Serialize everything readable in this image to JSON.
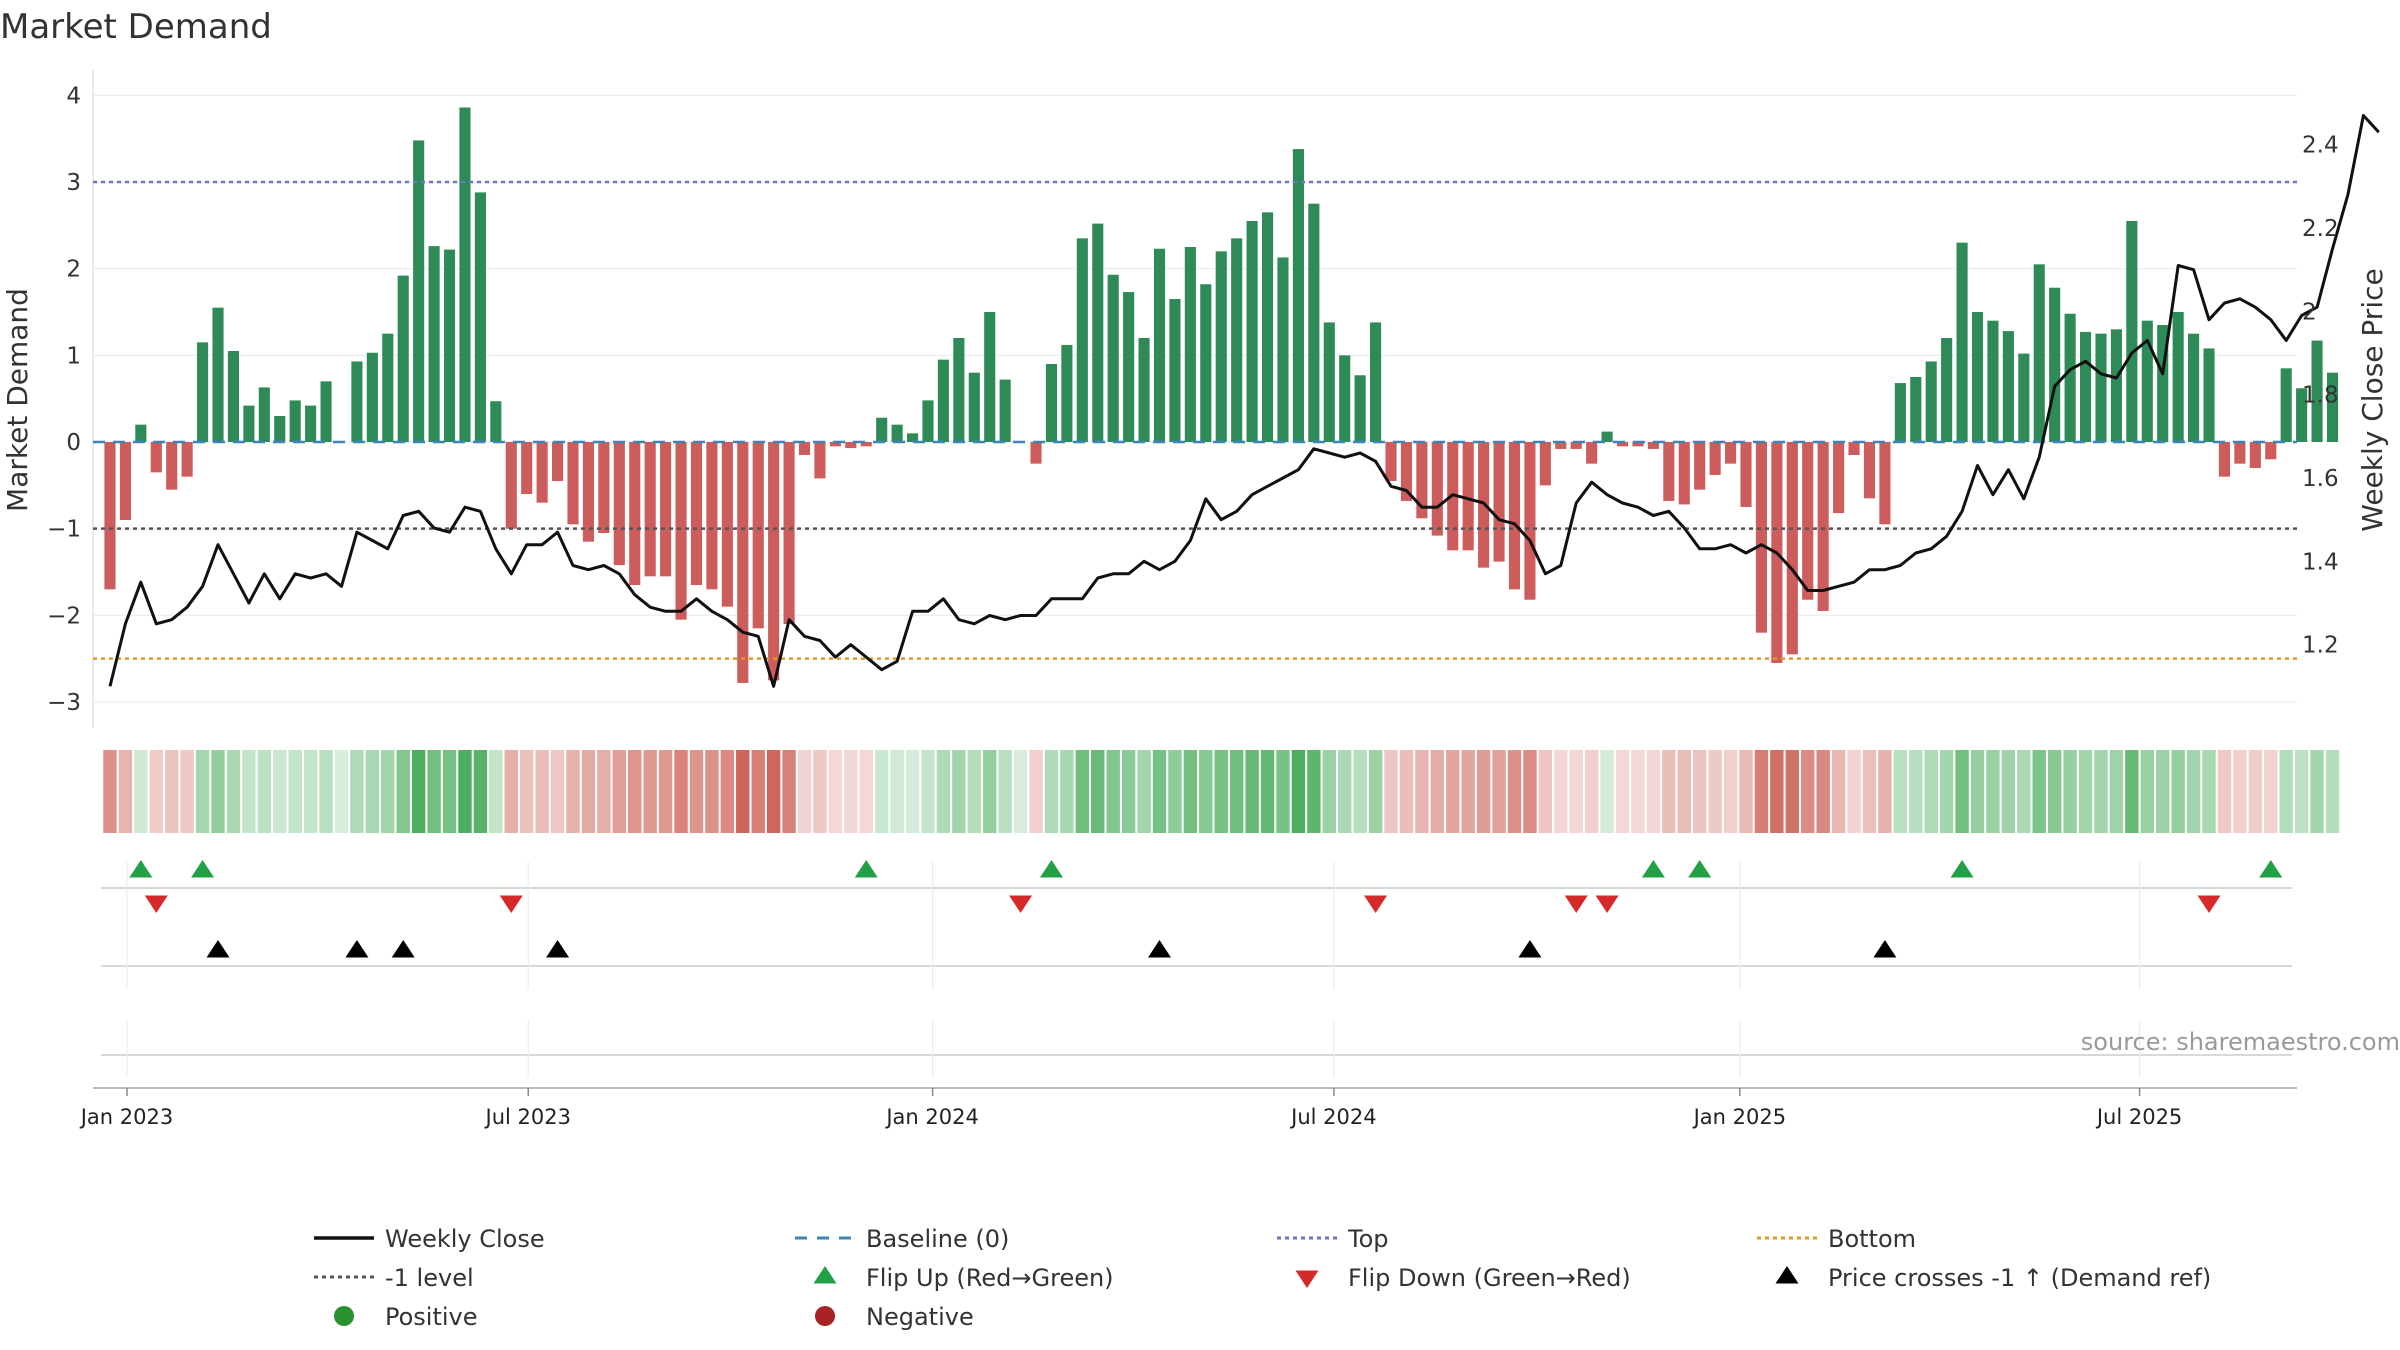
{
  "chart_data": {
    "type": "bar",
    "title": "Market Demand",
    "ylabel_left": "Market Demand",
    "ylabel_right": "Weekly Close Price",
    "source": "source: sharemaestro.com",
    "ylim_left": [
      -3.3,
      4.2
    ],
    "yticks_left": [
      {
        "value": 4,
        "label": "4"
      },
      {
        "value": 3,
        "label": "3"
      },
      {
        "value": 2,
        "label": "2"
      },
      {
        "value": 1,
        "label": "1"
      },
      {
        "value": 0,
        "label": "0"
      },
      {
        "value": -1,
        "label": "−1"
      },
      {
        "value": -2,
        "label": "−2"
      },
      {
        "value": -3,
        "label": "−3"
      }
    ],
    "ylim_right": [
      1.0,
      2.56
    ],
    "yticks_right": [
      {
        "value": 2.4,
        "label": "2.4"
      },
      {
        "value": 2.2,
        "label": "2.2"
      },
      {
        "value": 2.0,
        "label": "2"
      },
      {
        "value": 1.8,
        "label": "1.8"
      },
      {
        "value": 1.6,
        "label": "1.6"
      },
      {
        "value": 1.4,
        "label": "1.4"
      },
      {
        "value": 1.2,
        "label": "1.2"
      }
    ],
    "x_start_index": -1.1,
    "x_end_index": 141.7,
    "x_tick_labels": [
      {
        "week_index": 1.1,
        "label": "Jan 2023"
      },
      {
        "week_index": 27.1,
        "label": "Jul 2023"
      },
      {
        "week_index": 53.3,
        "label": "Jan 2024"
      },
      {
        "week_index": 79.3,
        "label": "Jul 2024"
      },
      {
        "week_index": 105.6,
        "label": "Jan 2025"
      },
      {
        "week_index": 131.5,
        "label": "Jul 2025"
      }
    ],
    "reference_lines": {
      "top": 3.0,
      "minus_one": -1.0,
      "bottom": -2.5,
      "baseline": 0
    },
    "demand": [
      -1.7,
      -0.9,
      0.2,
      -0.35,
      -0.55,
      -0.4,
      1.15,
      1.55,
      1.05,
      0.42,
      0.63,
      0.3,
      0.48,
      0.42,
      0.7,
      0,
      0.93,
      1.03,
      1.25,
      1.92,
      3.48,
      2.26,
      2.22,
      3.86,
      2.88,
      0.47,
      -1.0,
      -0.6,
      -0.7,
      -0.45,
      -0.95,
      -1.15,
      -1.05,
      -1.42,
      -1.65,
      -1.55,
      -1.55,
      -2.05,
      -1.65,
      -1.7,
      -1.9,
      -2.78,
      -2.15,
      -2.75,
      -2.1,
      -0.15,
      -0.42,
      -0.05,
      -0.07,
      -0.05,
      0.28,
      0.2,
      0.1,
      0.48,
      0.95,
      1.2,
      0.8,
      1.5,
      0.72,
      0,
      -0.25,
      0.9,
      1.12,
      2.35,
      2.52,
      1.93,
      1.73,
      1.2,
      2.23,
      1.65,
      2.25,
      1.82,
      2.2,
      2.35,
      2.55,
      2.65,
      2.13,
      3.38,
      2.75,
      1.38,
      1.0,
      0.77,
      1.38,
      -0.45,
      -0.68,
      -0.88,
      -1.08,
      -1.25,
      -1.25,
      -1.45,
      -1.38,
      -1.7,
      -1.82,
      -0.5,
      -0.08,
      -0.08,
      -0.25,
      0.12,
      -0.05,
      -0.05,
      -0.08,
      -0.68,
      -0.72,
      -0.55,
      -0.38,
      -0.25,
      -0.75,
      -2.2,
      -2.55,
      -2.45,
      -1.82,
      -1.95,
      -0.82,
      -0.15,
      -0.65,
      -0.95,
      0.68,
      0.75,
      0.93,
      1.2,
      2.3,
      1.5,
      1.4,
      1.28,
      1.02,
      2.05,
      1.78,
      1.48,
      1.27,
      1.25,
      1.3,
      2.55,
      1.4,
      1.35,
      1.5,
      1.25,
      1.08,
      -0.4,
      -0.25,
      -0.3,
      -0.2,
      0.85,
      0.62,
      1.17,
      0.8
    ],
    "price": [
      1.1,
      1.25,
      1.35,
      1.25,
      1.26,
      1.29,
      1.34,
      1.44,
      1.37,
      1.3,
      1.37,
      1.31,
      1.37,
      1.36,
      1.37,
      1.34,
      1.47,
      1.45,
      1.43,
      1.51,
      1.52,
      1.48,
      1.47,
      1.53,
      1.52,
      1.43,
      1.37,
      1.44,
      1.44,
      1.47,
      1.39,
      1.38,
      1.39,
      1.37,
      1.32,
      1.29,
      1.28,
      1.28,
      1.31,
      1.28,
      1.26,
      1.23,
      1.22,
      1.1,
      1.26,
      1.22,
      1.21,
      1.17,
      1.2,
      1.17,
      1.14,
      1.16,
      1.28,
      1.28,
      1.31,
      1.26,
      1.25,
      1.27,
      1.26,
      1.27,
      1.27,
      1.31,
      1.31,
      1.31,
      1.36,
      1.37,
      1.37,
      1.4,
      1.38,
      1.4,
      1.45,
      1.55,
      1.5,
      1.52,
      1.56,
      1.58,
      1.6,
      1.62,
      1.67,
      1.66,
      1.65,
      1.66,
      1.64,
      1.58,
      1.57,
      1.53,
      1.53,
      1.56,
      1.55,
      1.54,
      1.5,
      1.49,
      1.45,
      1.37,
      1.39,
      1.54,
      1.59,
      1.56,
      1.54,
      1.53,
      1.51,
      1.52,
      1.48,
      1.43,
      1.43,
      1.44,
      1.42,
      1.44,
      1.42,
      1.38,
      1.33,
      1.33,
      1.34,
      1.35,
      1.38,
      1.38,
      1.39,
      1.42,
      1.43,
      1.46,
      1.52,
      1.63,
      1.56,
      1.62,
      1.55,
      1.65,
      1.82,
      1.86,
      1.88,
      1.85,
      1.84,
      1.9,
      1.93,
      1.85,
      2.11,
      2.1,
      1.98,
      2.02,
      2.03,
      2.01,
      1.98,
      1.93,
      1.99,
      2.01,
      2.15,
      2.28,
      2.47,
      2.43
    ],
    "flip_up_weeks": [
      2,
      6,
      49,
      61,
      100,
      103,
      120,
      140
    ],
    "flip_down_weeks": [
      3,
      26,
      59,
      82,
      95,
      97,
      136
    ],
    "price_cross_weeks": [
      7,
      16,
      19,
      29,
      68,
      92,
      115
    ],
    "legend": [
      {
        "label": "Weekly Close",
        "symbol": "line-solid",
        "color": "#111111"
      },
      {
        "label": "Baseline (0)",
        "symbol": "line-dash",
        "color": "#3d85b8"
      },
      {
        "label": "Top",
        "symbol": "line-dot",
        "color": "#7070d0"
      },
      {
        "label": "Bottom",
        "symbol": "line-dot",
        "color": "#e09a20"
      },
      {
        "label": "-1 level",
        "symbol": "line-dot",
        "color": "#555555"
      },
      {
        "label": "Flip Up (Red→Green)",
        "symbol": "triangle-up",
        "color": "#22a045"
      },
      {
        "label": "Flip Down (Green→Red)",
        "symbol": "triangle-down",
        "color": "#d62a2a"
      },
      {
        "label": "Price crosses -1 ↑ (Demand ref)",
        "symbol": "triangle-up",
        "color": "#000000"
      },
      {
        "label": "Positive",
        "symbol": "circle",
        "color": "#2a9032"
      },
      {
        "label": "Negative",
        "symbol": "circle",
        "color": "#a82424"
      }
    ],
    "colors": {
      "positive_bar": "#2e8b57",
      "negative_bar": "#cd5c5c",
      "price_line": "#111111",
      "top_line": "#7070d0",
      "bottom_line": "#e09a20",
      "minus_one_line": "#555555",
      "baseline": "#3d85b8",
      "flip_up": "#22a045",
      "flip_down": "#d62a2a",
      "price_cross": "#000000"
    }
  }
}
